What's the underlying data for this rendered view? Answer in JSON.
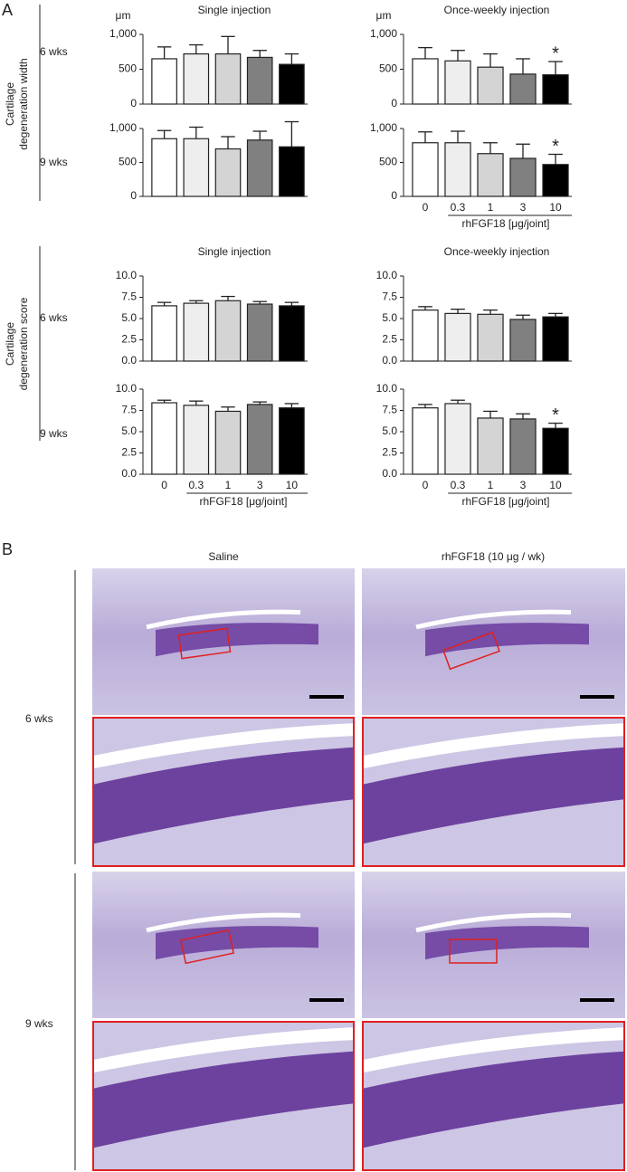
{
  "panel_a": {
    "label": "A",
    "rows": [
      "6 wks",
      "9 wks",
      "6 wks",
      "9 wks"
    ],
    "group_labels": [
      [
        "Cartilage",
        "degeneration width"
      ],
      [
        "Cartilage",
        "degeneration score"
      ]
    ]
  },
  "chart_data": [
    {
      "type": "bar",
      "title": "Single injection",
      "ylabel": "μm",
      "categories": [
        null,
        null,
        null,
        null,
        null
      ],
      "values": [
        650,
        720,
        720,
        670,
        570
      ],
      "errors": [
        170,
        130,
        250,
        100,
        150
      ],
      "colors": [
        "#ffffff",
        "#eeeeee",
        "#d4d4d4",
        "#808080",
        "#000000"
      ],
      "ylim": [
        0,
        1000
      ],
      "yticks": [
        0,
        500,
        {
          "value": 1000,
          "label": "1,000"
        }
      ]
    },
    {
      "type": "bar",
      "title": "Once-weekly injection",
      "ylabel": "μm",
      "categories": [
        null,
        null,
        null,
        null,
        null
      ],
      "values": [
        650,
        620,
        530,
        430,
        420
      ],
      "errors": [
        160,
        150,
        190,
        220,
        190
      ],
      "significance": [
        null,
        null,
        null,
        null,
        "*"
      ],
      "colors": [
        "#ffffff",
        "#eeeeee",
        "#d4d4d4",
        "#808080",
        "#000000"
      ],
      "ylim": [
        0,
        1000
      ],
      "yticks": [
        0,
        500,
        {
          "value": 1000,
          "label": "1,000"
        }
      ]
    },
    {
      "type": "bar",
      "categories": [
        null,
        null,
        null,
        null,
        null
      ],
      "values": [
        850,
        850,
        700,
        830,
        730
      ],
      "errors": [
        120,
        170,
        180,
        130,
        370
      ],
      "colors": [
        "#ffffff",
        "#eeeeee",
        "#d4d4d4",
        "#808080",
        "#000000"
      ],
      "ylim": [
        0,
        1000
      ],
      "yticks": [
        0,
        500,
        {
          "value": 1000,
          "label": "1,000"
        }
      ]
    },
    {
      "type": "bar",
      "categories": [
        "0",
        "0.3",
        "1",
        "3",
        "10"
      ],
      "xlabel": "rhFGF18 [μg/joint]",
      "values": [
        790,
        790,
        630,
        560,
        470
      ],
      "errors": [
        160,
        170,
        160,
        210,
        150
      ],
      "significance": [
        null,
        null,
        null,
        null,
        "*"
      ],
      "colors": [
        "#ffffff",
        "#eeeeee",
        "#d4d4d4",
        "#808080",
        "#000000"
      ],
      "ylim": [
        0,
        1000
      ],
      "yticks": [
        0,
        500,
        {
          "value": 1000,
          "label": "1,000"
        }
      ]
    },
    {
      "type": "bar",
      "title": "Single injection",
      "categories": [
        null,
        null,
        null,
        null,
        null
      ],
      "values": [
        6.5,
        6.8,
        7.1,
        6.7,
        6.5
      ],
      "errors": [
        0.4,
        0.3,
        0.5,
        0.3,
        0.4
      ],
      "colors": [
        "#ffffff",
        "#eeeeee",
        "#d4d4d4",
        "#808080",
        "#000000"
      ],
      "ylim": [
        0,
        10
      ],
      "yticks": [
        {
          "value": 0,
          "label": "0.0"
        },
        2.5,
        {
          "value": 5,
          "label": "5.0"
        },
        7.5,
        {
          "value": 10,
          "label": "10.0"
        }
      ]
    },
    {
      "type": "bar",
      "title": "Once-weekly injection",
      "categories": [
        null,
        null,
        null,
        null,
        null
      ],
      "values": [
        6.0,
        5.6,
        5.5,
        4.9,
        5.2
      ],
      "errors": [
        0.4,
        0.5,
        0.5,
        0.5,
        0.4
      ],
      "colors": [
        "#ffffff",
        "#eeeeee",
        "#d4d4d4",
        "#808080",
        "#000000"
      ],
      "ylim": [
        0,
        10
      ],
      "yticks": [
        {
          "value": 0,
          "label": "0.0"
        },
        2.5,
        {
          "value": 5,
          "label": "5.0"
        },
        7.5,
        {
          "value": 10,
          "label": "10.0"
        }
      ]
    },
    {
      "type": "bar",
      "categories": [
        "0",
        "0.3",
        "1",
        "3",
        "10"
      ],
      "xlabel": "rhFGF18 [μg/joint]",
      "values": [
        8.4,
        8.1,
        7.4,
        8.2,
        7.8
      ],
      "errors": [
        0.3,
        0.5,
        0.5,
        0.3,
        0.5
      ],
      "colors": [
        "#ffffff",
        "#eeeeee",
        "#d4d4d4",
        "#808080",
        "#000000"
      ],
      "ylim": [
        0,
        10
      ],
      "yticks": [
        {
          "value": 0,
          "label": "0.0"
        },
        2.5,
        {
          "value": 5,
          "label": "5.0"
        },
        7.5,
        {
          "value": 10,
          "label": "10.0"
        }
      ]
    },
    {
      "type": "bar",
      "categories": [
        "0",
        "0.3",
        "1",
        "3",
        "10"
      ],
      "xlabel": "rhFGF18 [μg/joint]",
      "values": [
        7.8,
        8.3,
        6.6,
        6.5,
        5.4
      ],
      "errors": [
        0.4,
        0.4,
        0.8,
        0.6,
        0.6
      ],
      "significance": [
        null,
        null,
        null,
        null,
        "*"
      ],
      "colors": [
        "#ffffff",
        "#eeeeee",
        "#d4d4d4",
        "#808080",
        "#000000"
      ],
      "ylim": [
        0,
        10
      ],
      "yticks": [
        {
          "value": 0,
          "label": "0.0"
        },
        2.5,
        {
          "value": 5,
          "label": "5.0"
        },
        7.5,
        {
          "value": 10,
          "label": "10.0"
        }
      ]
    }
  ],
  "panel_b": {
    "label": "B",
    "columns": [
      "Saline",
      "rhFGF18 (10 μg / wk)"
    ],
    "rows": [
      "6 wks",
      "9 wks"
    ]
  }
}
